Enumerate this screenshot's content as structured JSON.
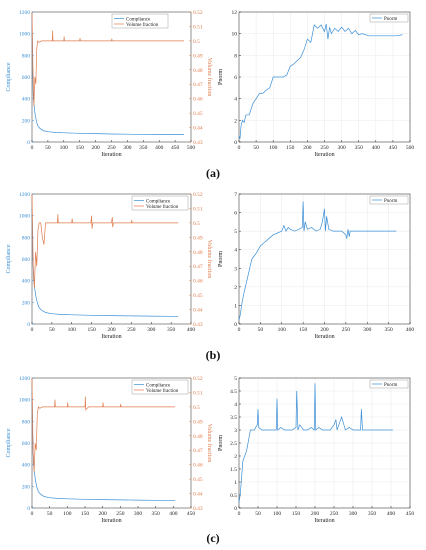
{
  "colors": {
    "compliance": "#3a8fd6",
    "volume": "#e07a4a",
    "pnorm": "#3a8fd6",
    "axis": "#222222",
    "grid": "#e3e3e3"
  },
  "panel_labels": [
    "(a)",
    "(b)",
    "(c)"
  ],
  "chart_data": [
    {
      "type": "line",
      "panel": "(a)",
      "xlabel": "Iteration",
      "ylabel_left": "Compliance",
      "ylabel_right": "Volume fraction",
      "xlim": [
        0,
        500
      ],
      "xticks": [
        0,
        50,
        100,
        150,
        200,
        250,
        300,
        350,
        400,
        450,
        500
      ],
      "ylim_left": [
        0,
        1200
      ],
      "yticks_left": [
        0,
        200,
        400,
        600,
        800,
        1000,
        1200
      ],
      "ylim_right": [
        0.43,
        0.52
      ],
      "yticks_right": [
        0.43,
        0.44,
        0.45,
        0.46,
        0.47,
        0.48,
        0.49,
        0.5,
        0.51,
        0.52
      ],
      "grid": false,
      "legend_position": "top-center",
      "series": [
        {
          "name": "Compliance",
          "axis": "left",
          "x": [
            0,
            2,
            4,
            6,
            8,
            10,
            14,
            18,
            25,
            35,
            50,
            75,
            100,
            150,
            200,
            250,
            300,
            350,
            400,
            450,
            478
          ],
          "y": [
            1150,
            700,
            420,
            350,
            300,
            250,
            190,
            150,
            125,
            105,
            95,
            88,
            85,
            80,
            77,
            74,
            72,
            70,
            69,
            68,
            68
          ]
        },
        {
          "name": "Volume fraction",
          "axis": "right",
          "x": [
            0,
            3,
            6,
            9,
            12,
            15,
            18,
            22,
            30,
            50,
            64,
            65,
            66,
            80,
            100,
            101,
            102,
            150,
            151,
            152,
            200,
            250,
            251,
            252,
            300,
            350,
            400,
            450,
            478
          ],
          "y": [
            0.52,
            0.48,
            0.455,
            0.475,
            0.47,
            0.495,
            0.5,
            0.499,
            0.5,
            0.5,
            0.5,
            0.507,
            0.5,
            0.5,
            0.5,
            0.503,
            0.5,
            0.5,
            0.502,
            0.5,
            0.5,
            0.5,
            0.5015,
            0.5,
            0.5,
            0.5,
            0.5,
            0.5,
            0.5
          ]
        }
      ]
    },
    {
      "type": "line",
      "panel": "(a)",
      "xlabel": "Iteration",
      "ylabel": "Pnorm",
      "xlim": [
        0,
        500
      ],
      "xticks": [
        0,
        50,
        100,
        150,
        200,
        250,
        300,
        350,
        400,
        450,
        500
      ],
      "ylim": [
        0,
        12
      ],
      "yticks": [
        0,
        2,
        4,
        6,
        8,
        10,
        12
      ],
      "grid": true,
      "legend_position": "top-right",
      "series": [
        {
          "name": "Pnorm",
          "x": [
            0,
            3,
            6,
            10,
            15,
            20,
            30,
            40,
            50,
            60,
            70,
            80,
            90,
            100,
            110,
            120,
            130,
            140,
            150,
            160,
            170,
            180,
            190,
            200,
            210,
            220,
            230,
            240,
            250,
            255,
            260,
            265,
            270,
            280,
            290,
            300,
            310,
            320,
            330,
            340,
            350,
            360,
            380,
            400,
            420,
            440,
            460,
            478
          ],
          "y": [
            0.6,
            0.3,
            1.5,
            2.0,
            1.8,
            2.5,
            2.5,
            3.5,
            4.0,
            4.5,
            4.5,
            4.8,
            5.0,
            6.0,
            6.0,
            6.0,
            6.0,
            6.2,
            7.0,
            7.2,
            7.5,
            7.8,
            8.5,
            9.5,
            9.2,
            10.8,
            10.5,
            10.8,
            10.2,
            10.9,
            9.5,
            10.6,
            10.0,
            10.5,
            10.2,
            10.6,
            10.2,
            10.5,
            10.0,
            10.3,
            9.9,
            10.0,
            9.8,
            9.8,
            9.8,
            9.8,
            9.8,
            9.9
          ]
        }
      ]
    },
    {
      "type": "line",
      "panel": "(b)",
      "xlabel": "Iteration",
      "ylabel_left": "Compliance",
      "ylabel_right": "Volume fraction",
      "xlim": [
        0,
        400
      ],
      "xticks": [
        0,
        50,
        100,
        150,
        200,
        250,
        300,
        350,
        400
      ],
      "ylim_left": [
        0,
        1200
      ],
      "yticks_left": [
        0,
        200,
        400,
        600,
        800,
        1000,
        1200
      ],
      "ylim_right": [
        0.43,
        0.52
      ],
      "yticks_right": [
        0.43,
        0.44,
        0.45,
        0.46,
        0.47,
        0.48,
        0.49,
        0.5,
        0.51,
        0.52
      ],
      "grid": false,
      "legend_position": "top-right",
      "series": [
        {
          "name": "Compliance",
          "axis": "left",
          "x": [
            0,
            2,
            4,
            6,
            8,
            10,
            14,
            18,
            25,
            35,
            50,
            75,
            100,
            150,
            200,
            250,
            300,
            350,
            368
          ],
          "y": [
            1080,
            650,
            420,
            350,
            300,
            250,
            190,
            150,
            125,
            105,
            95,
            88,
            85,
            80,
            77,
            75,
            73,
            71,
            70
          ]
        },
        {
          "name": "Volume fraction",
          "axis": "right",
          "x": [
            0,
            3,
            6,
            9,
            12,
            15,
            18,
            22,
            26,
            30,
            34,
            40,
            60,
            64,
            65,
            66,
            100,
            101,
            102,
            148,
            150,
            151,
            153,
            200,
            202,
            203,
            205,
            250,
            251,
            252,
            300,
            368
          ],
          "y": [
            0.52,
            0.47,
            0.455,
            0.48,
            0.47,
            0.495,
            0.5,
            0.5,
            0.49,
            0.485,
            0.5,
            0.5,
            0.5,
            0.5,
            0.506,
            0.5,
            0.5,
            0.503,
            0.5,
            0.5,
            0.505,
            0.496,
            0.5,
            0.5,
            0.504,
            0.497,
            0.5,
            0.5,
            0.502,
            0.5,
            0.5,
            0.5
          ]
        }
      ]
    },
    {
      "type": "line",
      "panel": "(b)",
      "xlabel": "Iteration",
      "ylabel": "Pnorm",
      "xlim": [
        0,
        400
      ],
      "xticks": [
        0,
        50,
        100,
        150,
        200,
        250,
        300,
        350,
        400
      ],
      "ylim": [
        0,
        7
      ],
      "yticks": [
        0,
        1,
        2,
        3,
        4,
        5,
        6,
        7
      ],
      "grid": true,
      "legend_position": "top-right",
      "series": [
        {
          "name": "Pnorm",
          "x": [
            0,
            3,
            6,
            10,
            15,
            20,
            25,
            30,
            40,
            50,
            60,
            70,
            80,
            90,
            100,
            105,
            110,
            115,
            120,
            130,
            140,
            148,
            150,
            152,
            155,
            160,
            170,
            180,
            190,
            195,
            200,
            202,
            205,
            210,
            220,
            230,
            240,
            250,
            252,
            255,
            258,
            260,
            270,
            280,
            300,
            320,
            340,
            360,
            368
          ],
          "y": [
            0.2,
            0.5,
            1.0,
            1.5,
            2.0,
            2.5,
            3.0,
            3.5,
            3.8,
            4.2,
            4.4,
            4.6,
            4.8,
            4.9,
            5.0,
            5.3,
            5.0,
            5.2,
            5.1,
            5.0,
            5.1,
            5.2,
            6.6,
            5.0,
            5.5,
            5.1,
            5.2,
            5.0,
            5.1,
            5.5,
            6.2,
            5.0,
            5.8,
            5.1,
            5.0,
            5.0,
            5.0,
            4.8,
            4.6,
            5.1,
            4.7,
            5.0,
            5.0,
            5.0,
            5.0,
            5.0,
            5.0,
            5.0,
            5.0
          ]
        }
      ]
    },
    {
      "type": "line",
      "panel": "(c)",
      "xlabel": "Iteration",
      "ylabel_left": "Compliance",
      "ylabel_right": "Volume fraction",
      "xlim": [
        0,
        450
      ],
      "xticks": [
        0,
        50,
        100,
        150,
        200,
        250,
        300,
        350,
        400,
        450
      ],
      "ylim_left": [
        0,
        1200
      ],
      "yticks_left": [
        0,
        200,
        400,
        600,
        800,
        1000,
        1200
      ],
      "ylim_right": [
        0.43,
        0.52
      ],
      "yticks_right": [
        0.43,
        0.44,
        0.45,
        0.46,
        0.47,
        0.48,
        0.49,
        0.5,
        0.51,
        0.52
      ],
      "grid": false,
      "legend_position": "top-right",
      "series": [
        {
          "name": "Compliance",
          "axis": "left",
          "x": [
            0,
            2,
            4,
            6,
            8,
            10,
            14,
            18,
            25,
            35,
            50,
            75,
            100,
            150,
            200,
            250,
            300,
            350,
            400,
            405
          ],
          "y": [
            1100,
            680,
            420,
            350,
            300,
            250,
            190,
            150,
            125,
            105,
            95,
            88,
            85,
            80,
            77,
            75,
            73,
            71,
            70,
            70
          ]
        },
        {
          "name": "Volume fraction",
          "axis": "right",
          "x": [
            0,
            3,
            6,
            9,
            12,
            15,
            18,
            22,
            30,
            50,
            64,
            65,
            66,
            100,
            101,
            102,
            150,
            151,
            152,
            160,
            200,
            201,
            202,
            250,
            251,
            252,
            300,
            405
          ],
          "y": [
            0.52,
            0.47,
            0.455,
            0.475,
            0.47,
            0.495,
            0.5,
            0.499,
            0.5,
            0.5,
            0.5,
            0.505,
            0.5,
            0.5,
            0.503,
            0.5,
            0.5,
            0.507,
            0.498,
            0.5,
            0.5,
            0.503,
            0.5,
            0.5,
            0.502,
            0.5,
            0.5,
            0.5
          ]
        }
      ]
    },
    {
      "type": "line",
      "panel": "(c)",
      "xlabel": "Iteration",
      "ylabel": "Pnorm",
      "xlim": [
        0,
        450
      ],
      "xticks": [
        0,
        50,
        100,
        150,
        200,
        250,
        300,
        350,
        400,
        450
      ],
      "ylim": [
        0,
        5
      ],
      "yticks": [
        0,
        0.5,
        1,
        1.5,
        2,
        2.5,
        3,
        3.5,
        4,
        4.5,
        5
      ],
      "grid": true,
      "legend_position": "top-right",
      "series": [
        {
          "name": "Pnorm",
          "x": [
            0,
            3,
            6,
            10,
            15,
            20,
            25,
            30,
            40,
            48,
            50,
            52,
            60,
            70,
            80,
            90,
            98,
            100,
            102,
            110,
            120,
            140,
            150,
            152,
            155,
            160,
            170,
            180,
            190,
            198,
            200,
            202,
            210,
            220,
            240,
            250,
            255,
            258,
            270,
            280,
            290,
            300,
            320,
            322,
            325,
            340,
            360,
            380,
            400,
            405
          ],
          "y": [
            0.2,
            0.5,
            1.0,
            1.8,
            2.0,
            2.2,
            2.6,
            3.0,
            3.0,
            3.2,
            3.8,
            3.1,
            3.0,
            3.0,
            3.0,
            3.0,
            3.0,
            4.2,
            3.0,
            3.1,
            3.0,
            3.0,
            3.1,
            4.5,
            3.0,
            3.2,
            3.0,
            3.0,
            3.1,
            3.0,
            4.8,
            3.0,
            3.1,
            3.0,
            3.0,
            3.2,
            3.4,
            3.0,
            3.5,
            3.0,
            3.1,
            3.0,
            3.0,
            3.8,
            3.0,
            3.0,
            3.0,
            3.0,
            3.0,
            3.0
          ]
        }
      ]
    }
  ]
}
